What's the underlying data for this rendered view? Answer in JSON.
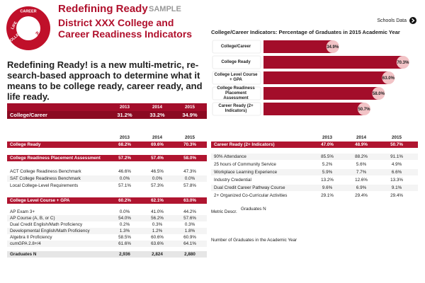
{
  "header": {
    "logo": [
      "CAREER",
      "READY",
      "LIFE",
      "READY",
      "COLLEGE",
      "READY"
    ],
    "brand": "Redefining Ready",
    "badge": "SAMPLE",
    "title": "District XXX College and Career Readiness Indicators",
    "link": "Schools Data"
  },
  "intro": "Redefining Ready! is a new multi-metric, re-search-based approach to determine what it means to be college ready, career ready, and life ready.",
  "chart_data": {
    "type": "bar",
    "orientation": "horizontal",
    "title": "College/Career Indicators: Percentage of Graduates in 2015 Academic Year",
    "categories": [
      "College/Career",
      "College Ready",
      "College Level Course + GPA",
      "College Readiness Placement Assessment",
      "Career Ready (2+ Indicators)"
    ],
    "values": [
      34.9,
      70.3,
      63.0,
      58.0,
      50.7
    ],
    "value_labels": [
      "34.9%",
      "70.3%",
      "63.0%",
      "58.0%",
      "50.7%"
    ],
    "color": "#a30d2a",
    "label_color": "#f2c3c6"
  },
  "tables": {
    "summary": {
      "header": [
        "2013",
        "2014",
        "2015"
      ],
      "rows": [
        {
          "cells": [
            "College/Career",
            "31.2%",
            "33.2%",
            "34.9%"
          ],
          "highlight": true
        }
      ]
    },
    "college": {
      "header": [
        "2013",
        "2014",
        "2015"
      ],
      "rows": [
        {
          "cells": [
            "College Ready",
            "68.2%",
            "69.6%",
            "70.3%"
          ],
          "highlight": true
        },
        {
          "cells": [
            "College Readiness Placement Assessment",
            "57.2%",
            "57.4%",
            "58.0%"
          ],
          "highlight": true
        },
        {
          "cells": [
            "ACT College Readiness Benchmark",
            "46.6%",
            "46.5%",
            "47.3%"
          ],
          "highlight": false
        },
        {
          "cells": [
            "SAT College Readiness Benchmark",
            "0.0%",
            "0.0%",
            "0.0%"
          ],
          "highlight": false
        },
        {
          "cells": [
            "Local College-Level Requirements",
            "57.1%",
            "57.3%",
            "57.8%"
          ],
          "highlight": false
        },
        {
          "cells": [
            "College Level Course + GPA",
            "60.2%",
            "62.1%",
            "63.0%"
          ],
          "highlight": true
        },
        {
          "cells": [
            "AP Exam 3+",
            "0.0%",
            "41.0%",
            "44.2%"
          ],
          "highlight": false
        },
        {
          "cells": [
            "AP Course (A, B, or C)",
            "54.0%",
            "56.2%",
            "57.6%"
          ],
          "highlight": false
        },
        {
          "cells": [
            "Dual Credit English/Math Proficiency",
            "0.2%",
            "0.3%",
            "0.3%"
          ],
          "highlight": false
        },
        {
          "cells": [
            "Developmental English/Math Proficiency",
            "1.3%",
            "1.2%",
            "1.8%"
          ],
          "highlight": false
        },
        {
          "cells": [
            "Algebra II Proficiency",
            "58.5%",
            "60.6%",
            "60.9%"
          ],
          "highlight": false
        },
        {
          "cells": [
            "cumGPA 2.8+/4",
            "61.6%",
            "63.6%",
            "64.1%"
          ],
          "highlight": false
        },
        {
          "cells": [
            "Graduates N",
            "2,936",
            "2,824",
            "2,880"
          ],
          "highlight": false
        }
      ]
    },
    "career": {
      "header": [
        "2013",
        "2014",
        "2015"
      ],
      "rows": [
        {
          "cells": [
            "Career Ready (2+ Indicators)",
            "47.0%",
            "48.9%",
            "50.7%"
          ],
          "highlight": true
        },
        {
          "cells": [
            "90% Attendance",
            "85.5%",
            "88.2%",
            "91.1%"
          ],
          "highlight": false
        },
        {
          "cells": [
            "25 hours of Community Service",
            "5.2%",
            "5.6%",
            "4.9%"
          ],
          "highlight": false
        },
        {
          "cells": [
            "Workplace Learning Experience",
            "5.9%",
            "7.7%",
            "6.6%"
          ],
          "highlight": false
        },
        {
          "cells": [
            "Industry Credential",
            "13.2%",
            "12.6%",
            "13.3%"
          ],
          "highlight": false
        },
        {
          "cells": [
            "Dual Credit Career Pathway Course",
            "9.6%",
            "6.9%",
            "9.1%"
          ],
          "highlight": false
        },
        {
          "cells": [
            "2+ Organized Co-Curricular Activities",
            "29.1%",
            "29.4%",
            "29.4%"
          ],
          "highlight": false
        }
      ]
    }
  },
  "metric": {
    "label": "Metric Descr.",
    "name": "Graduates N",
    "description": "Number of Graduates in the Academic Year"
  }
}
